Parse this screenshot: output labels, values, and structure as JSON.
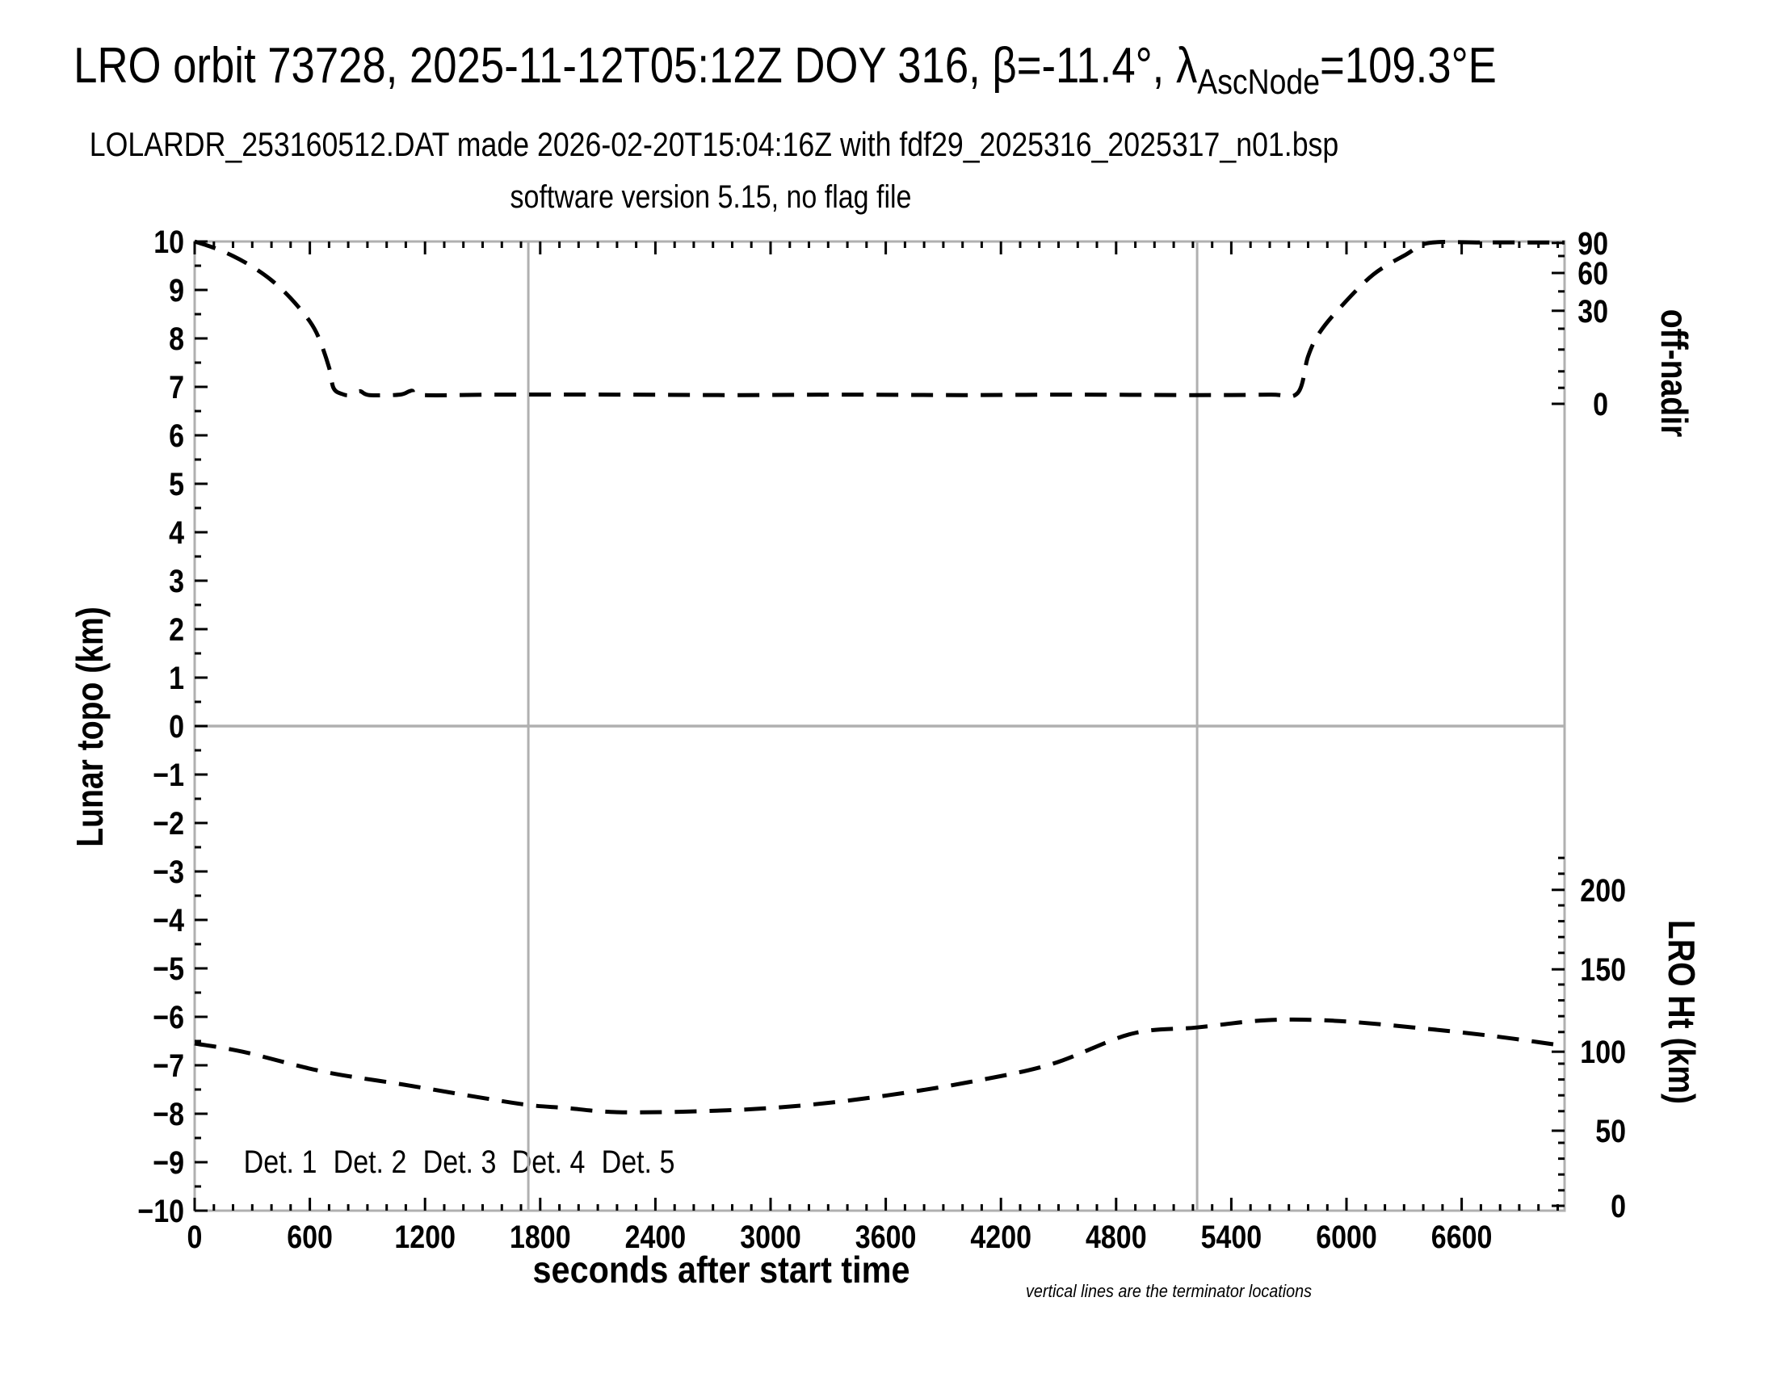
{
  "titles": {
    "main_pre": "LRO orbit 73728, 2025-11-12T05:12Z DOY 316, β=-11.4°, λ",
    "main_sub": "AscNode",
    "main_post": "=109.3°E",
    "line2": "LOLARDR_253160512.DAT made 2026-02-20T15:04:16Z with fdf29_2025316_2025317_n01.bsp",
    "line3": "software version 5.15, no flag file"
  },
  "footnote": "vertical lines are the terminator locations",
  "style": {
    "grid_color": "#b0b0b0",
    "tick_color": "#000000",
    "curve_color": "#000000",
    "dash_pattern": "27 16"
  },
  "axes": {
    "x": {
      "label": "seconds after start time",
      "min": 0,
      "max": 7136,
      "major_tick_step": 600,
      "minor_tick_step": 100,
      "majors": [
        {
          "t": 0,
          "label": "0"
        },
        {
          "t": 600,
          "label": "600"
        },
        {
          "t": 1200,
          "label": "1200"
        },
        {
          "t": 1800,
          "label": "1800"
        },
        {
          "t": 2400,
          "label": "2400"
        },
        {
          "t": 3000,
          "label": "3000"
        },
        {
          "t": 3600,
          "label": "3600"
        },
        {
          "t": 4200,
          "label": "4200"
        },
        {
          "t": 4800,
          "label": "4800"
        },
        {
          "t": 5400,
          "label": "5400"
        },
        {
          "t": 6000,
          "label": "6000"
        },
        {
          "t": 6600,
          "label": "6600"
        }
      ]
    },
    "y_left": {
      "label": "Lunar topo (km)",
      "min": -10,
      "max": 10,
      "major_tick_step": 1,
      "minor_tick_step": 0.5
    },
    "y_right_top": {
      "label": "off-nadir",
      "majors": [
        {
          "label": "90",
          "y_topo": 9.97
        },
        {
          "label": "60",
          "y_topo": 9.35
        },
        {
          "label": "30",
          "y_topo": 8.57
        },
        {
          "label": "0",
          "y_topo": 6.65
        }
      ],
      "minors_y_topo": [
        9.7,
        8.97,
        8.2,
        7.77,
        7.32,
        6.98
      ]
    },
    "y_right_bottom": {
      "label": "LRO Ht (km)",
      "majors": [
        {
          "label": "200",
          "y_topo": -3.38
        },
        {
          "label": "150",
          "y_topo": -5.02
        },
        {
          "label": "100",
          "y_topo": -6.72
        },
        {
          "label": "50",
          "y_topo": -8.35
        },
        {
          "label": "0",
          "y_topo": -9.9
        }
      ],
      "minors": {
        "from_y_topo": -2.72,
        "to_y_topo": -9.93,
        "step_y_topo": 0.3267
      }
    }
  },
  "gridlines": {
    "horizontal_y_topo": 0,
    "terminator_lines_t": [
      1738,
      5222
    ]
  },
  "legend": [
    {
      "label": "Det. 1",
      "color": "#000000"
    },
    {
      "label": "Det. 2",
      "color": "#0000ff"
    },
    {
      "label": "Det. 3",
      "color": "#00dd00"
    },
    {
      "label": "Det. 4",
      "color": "#ffa500"
    },
    {
      "label": "Det. 5",
      "color": "#ff0000"
    }
  ],
  "chart_data": {
    "type": "line",
    "title": "LRO orbit 73728, 2025-11-12T05:12Z DOY 316, β=-11.4°, λ_AscNode=109.3°E",
    "subtitle1": "LOLARDR_253160512.DAT made 2026-02-20T15:04:16Z with fdf29_2025316_2025317_n01.bsp",
    "subtitle2": "software version 5.15, no flag file",
    "xlabel": "seconds after start time",
    "x_range": [
      0,
      7136
    ],
    "left_axis": {
      "label": "Lunar topo (km)",
      "range": [
        -10,
        10
      ]
    },
    "right_axis_top": {
      "label": "off-nadir",
      "units": "degrees",
      "ticks": [
        90,
        60,
        30,
        0
      ]
    },
    "right_axis_bottom": {
      "label": "LRO Ht (km)",
      "units": "km",
      "ticks": [
        200,
        150,
        100,
        50,
        0
      ]
    },
    "terminator_lines_x_seconds": [
      1738,
      5222
    ],
    "zero_topo_line": 0,
    "grid": "box with y=0 line and two vertical terminator lines",
    "legend_position": "bottom-left inside plot",
    "series": [
      {
        "name": "off-nadir angle",
        "axis": "right-top",
        "units": "degrees",
        "line_style": "black dashed",
        "points": [
          [
            0,
            90
          ],
          [
            100,
            85
          ],
          [
            200,
            77
          ],
          [
            300,
            66
          ],
          [
            400,
            54
          ],
          [
            500,
            40
          ],
          [
            600,
            27
          ],
          [
            650,
            21
          ],
          [
            700,
            12
          ],
          [
            724,
            5
          ],
          [
            800,
            3
          ],
          [
            1500,
            3
          ],
          [
            2400,
            3
          ],
          [
            3300,
            3
          ],
          [
            4200,
            3
          ],
          [
            5100,
            3
          ],
          [
            5745,
            3
          ],
          [
            5800,
            16
          ],
          [
            5860,
            23
          ],
          [
            5970,
            33
          ],
          [
            6140,
            59
          ],
          [
            6310,
            79
          ],
          [
            6430,
            90
          ],
          [
            6800,
            90
          ],
          [
            7136,
            90
          ]
        ],
        "plot_points_t_ytopo": [
          [
            0,
            10.0
          ],
          [
            100,
            9.87
          ],
          [
            200,
            9.7
          ],
          [
            300,
            9.48
          ],
          [
            400,
            9.2
          ],
          [
            500,
            8.83
          ],
          [
            600,
            8.35
          ],
          [
            650,
            7.98
          ],
          [
            700,
            7.4
          ],
          [
            724,
            6.97
          ],
          [
            770,
            6.85
          ],
          [
            810,
            6.83
          ],
          [
            860,
            6.91
          ],
          [
            910,
            6.83
          ],
          [
            1070,
            6.84
          ],
          [
            1130,
            6.92
          ],
          [
            1190,
            6.83
          ],
          [
            1600,
            6.84
          ],
          [
            2200,
            6.84
          ],
          [
            2800,
            6.83
          ],
          [
            3400,
            6.84
          ],
          [
            4000,
            6.83
          ],
          [
            4600,
            6.84
          ],
          [
            5200,
            6.83
          ],
          [
            5600,
            6.84
          ],
          [
            5745,
            6.87
          ],
          [
            5800,
            7.63
          ],
          [
            5860,
            8.12
          ],
          [
            5970,
            8.65
          ],
          [
            6140,
            9.32
          ],
          [
            6310,
            9.73
          ],
          [
            6430,
            9.97
          ],
          [
            6700,
            9.98
          ],
          [
            7000,
            9.98
          ],
          [
            7136,
            9.98
          ]
        ]
      },
      {
        "name": "LRO height",
        "axis": "right-bottom",
        "units": "km",
        "line_style": "black dashed",
        "points": [
          [
            0,
            105
          ],
          [
            250,
            100
          ],
          [
            670,
            87
          ],
          [
            1090,
            79
          ],
          [
            1510,
            70
          ],
          [
            1740,
            66
          ],
          [
            1930,
            64
          ],
          [
            2230,
            61
          ],
          [
            2770,
            62
          ],
          [
            3190,
            66
          ],
          [
            3610,
            72
          ],
          [
            4030,
            80
          ],
          [
            4460,
            92
          ],
          [
            4880,
            111
          ],
          [
            5220,
            115
          ],
          [
            5580,
            120
          ],
          [
            5930,
            119
          ],
          [
            6350,
            115
          ],
          [
            6770,
            110
          ],
          [
            7136,
            103
          ]
        ],
        "plot_points_t_ytopo": [
          [
            0,
            -6.55
          ],
          [
            250,
            -6.72
          ],
          [
            670,
            -7.13
          ],
          [
            1090,
            -7.4
          ],
          [
            1510,
            -7.68
          ],
          [
            1740,
            -7.82
          ],
          [
            1930,
            -7.88
          ],
          [
            2230,
            -7.97
          ],
          [
            2770,
            -7.93
          ],
          [
            3190,
            -7.82
          ],
          [
            3610,
            -7.62
          ],
          [
            4030,
            -7.35
          ],
          [
            4460,
            -6.98
          ],
          [
            4880,
            -6.35
          ],
          [
            5220,
            -6.22
          ],
          [
            5580,
            -6.07
          ],
          [
            5930,
            -6.08
          ],
          [
            6350,
            -6.22
          ],
          [
            6770,
            -6.4
          ],
          [
            7136,
            -6.6
          ]
        ]
      }
    ]
  }
}
